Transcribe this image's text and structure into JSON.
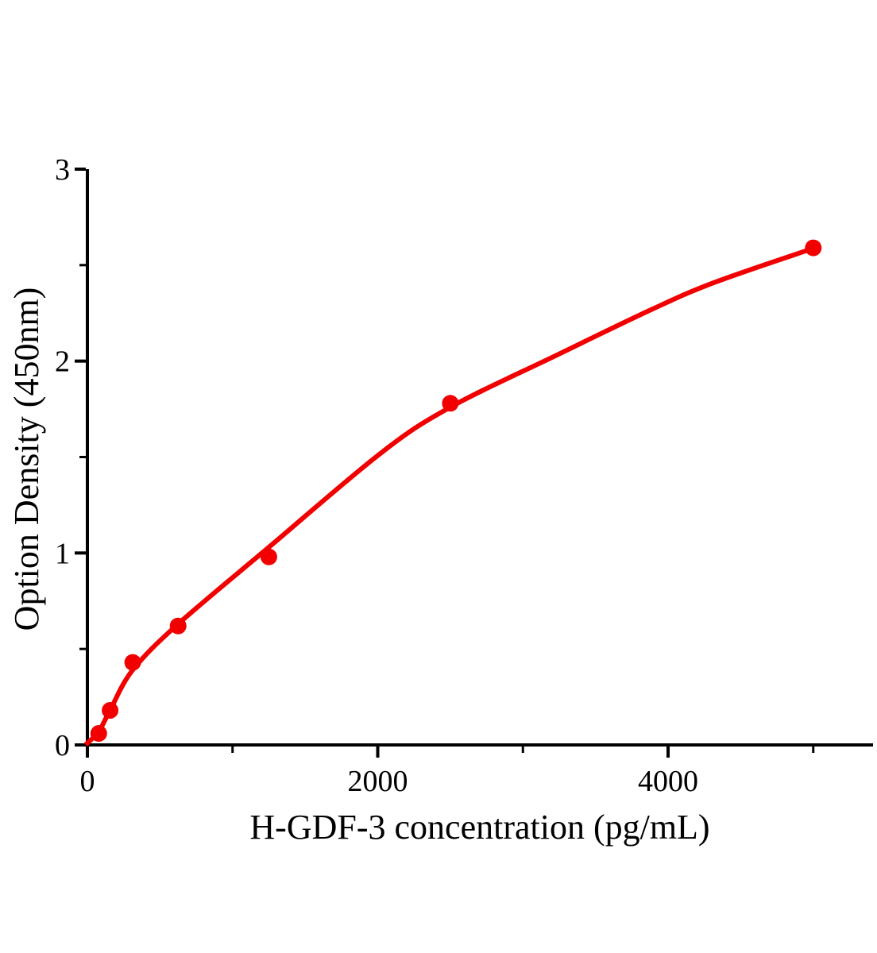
{
  "chart_data": {
    "type": "scatter",
    "title": "",
    "xlabel": "H-GDF-3 concentration (pg/mL)",
    "ylabel": "Option Density (450nm)",
    "xlim": [
      0,
      5410
    ],
    "ylim": [
      0,
      3
    ],
    "grid": false,
    "legend": null,
    "colors": {
      "series": "#f20000",
      "axis": "#000000",
      "background": "#ffffff"
    },
    "x_ticks": {
      "major": [
        {
          "value": 0,
          "label": "0"
        },
        {
          "value": 2000,
          "label": "2000"
        },
        {
          "value": 4000,
          "label": "4000"
        }
      ],
      "minor": [
        1000,
        3000,
        5000
      ]
    },
    "y_ticks": {
      "major": [
        {
          "value": 0,
          "label": "0"
        },
        {
          "value": 1,
          "label": "1"
        },
        {
          "value": 2,
          "label": "2"
        },
        {
          "value": 3,
          "label": "3"
        }
      ],
      "minor": [
        0.5,
        1.5,
        2.5
      ]
    },
    "series": [
      {
        "name": "standard-points",
        "type": "scatter",
        "marker": "circle",
        "color": "#f20000",
        "points": [
          {
            "x": 78.1,
            "y": 0.06
          },
          {
            "x": 156.3,
            "y": 0.18
          },
          {
            "x": 312.5,
            "y": 0.43
          },
          {
            "x": 625,
            "y": 0.62
          },
          {
            "x": 1250,
            "y": 0.98
          },
          {
            "x": 2500,
            "y": 1.78
          },
          {
            "x": 5000,
            "y": 2.59
          }
        ]
      },
      {
        "name": "fit-curve",
        "type": "line",
        "color": "#f20000",
        "points": [
          {
            "x": 0,
            "y": 0.01
          },
          {
            "x": 78,
            "y": 0.07
          },
          {
            "x": 156,
            "y": 0.18
          },
          {
            "x": 312,
            "y": 0.39
          },
          {
            "x": 625,
            "y": 0.63
          },
          {
            "x": 1250,
            "y": 1.03
          },
          {
            "x": 2020,
            "y": 1.52
          },
          {
            "x": 2500,
            "y": 1.76
          },
          {
            "x": 3230,
            "y": 2.03
          },
          {
            "x": 3890,
            "y": 2.27
          },
          {
            "x": 4320,
            "y": 2.41
          },
          {
            "x": 5010,
            "y": 2.59
          }
        ]
      }
    ]
  }
}
